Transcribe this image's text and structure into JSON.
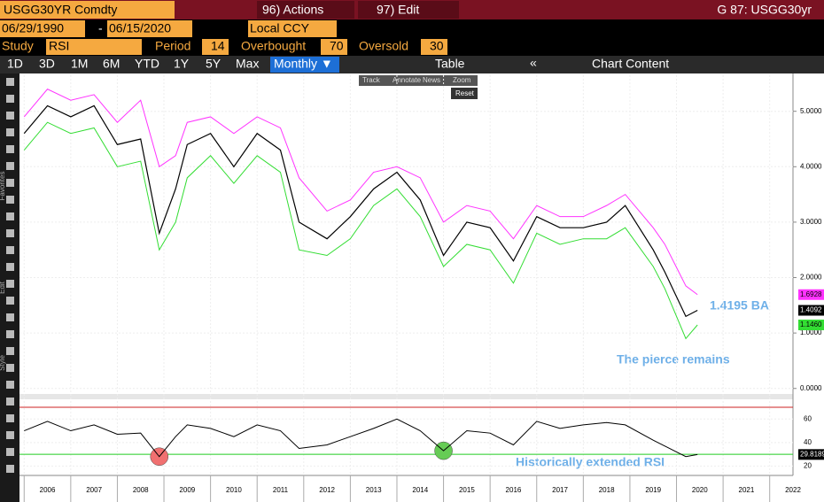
{
  "header": {
    "security": "USGG30YR Comdty",
    "actions": "96) Actions",
    "edit": "97) Edit",
    "ticker": "G 87: USGG30yr"
  },
  "toolbar": {
    "start_date": "06/29/1990",
    "dash": "-",
    "end_date": "06/15/2020",
    "currency": "Local CCY",
    "study_label": "Study",
    "study": "RSI",
    "period_label": "Period",
    "overbought_label": "Overbought",
    "oversold_label": "Oversold",
    "ranges": [
      "1D",
      "3D",
      "1M",
      "6M",
      "YTD",
      "1Y",
      "5Y",
      "Max"
    ],
    "frequency": "Monthly ▼",
    "table": "Table",
    "collapse": "«",
    "chart_content": "Chart Content",
    "tools": [
      "Track",
      "Annotate",
      "News",
      "Zoom"
    ],
    "reset": "Reset",
    "side_labels": [
      "Favorites",
      "Edit",
      "Style"
    ]
  },
  "chart_data": {
    "type": "line",
    "period": 14,
    "overbought": 70,
    "oversold": 30,
    "x": [
      2006.0,
      2006.5,
      2007.0,
      2007.5,
      2008.0,
      2008.5,
      2008.9,
      2009.25,
      2009.5,
      2010.0,
      2010.5,
      2011.0,
      2011.5,
      2011.9,
      2012.5,
      2013.0,
      2013.5,
      2014.0,
      2014.5,
      2015.0,
      2015.5,
      2016.0,
      2016.5,
      2017.0,
      2017.5,
      2018.0,
      2018.5,
      2018.9,
      2019.5,
      2019.75,
      2020.2,
      2020.45
    ],
    "xlim": [
      2005.9,
      2022.5
    ],
    "xticks": [
      2006,
      2007,
      2008,
      2009,
      2010,
      2011,
      2012,
      2013,
      2014,
      2015,
      2016,
      2017,
      2018,
      2019,
      2020,
      2021,
      2022
    ],
    "ylim": [
      -0.1,
      5.65
    ],
    "yticks": [
      {
        "value": 0,
        "label": "0.0000"
      },
      {
        "value": 1,
        "label": "1.0000"
      },
      {
        "value": 2,
        "label": "2.0000"
      },
      {
        "value": 3,
        "label": "3.0000"
      },
      {
        "value": 4,
        "label": "4.0000"
      },
      {
        "value": 5,
        "label": "5.0000"
      }
    ],
    "series": [
      {
        "color": "#ff33ff",
        "values": [
          4.9,
          5.4,
          5.2,
          5.3,
          4.8,
          5.2,
          4.0,
          4.2,
          4.8,
          4.9,
          4.6,
          4.9,
          4.7,
          3.8,
          3.2,
          3.4,
          3.9,
          4.0,
          3.8,
          3.0,
          3.3,
          3.2,
          2.7,
          3.3,
          3.1,
          3.1,
          3.3,
          3.5,
          2.9,
          2.6,
          1.85,
          1.6928
        ],
        "value_labels": [
          null,
          null,
          null,
          null,
          null,
          null,
          null,
          null,
          null,
          null,
          null,
          null,
          null,
          null,
          null,
          null,
          null,
          null,
          null,
          null,
          null,
          null,
          null,
          null,
          null,
          null,
          null,
          null,
          null,
          null,
          null,
          "1.6928"
        ]
      },
      {
        "color": "#000000",
        "values": [
          4.6,
          5.1,
          4.9,
          5.1,
          4.4,
          4.5,
          2.8,
          3.6,
          4.4,
          4.6,
          4.0,
          4.6,
          4.3,
          3.0,
          2.7,
          3.1,
          3.6,
          3.9,
          3.4,
          2.4,
          3.0,
          2.9,
          2.3,
          3.1,
          2.9,
          2.9,
          3.0,
          3.3,
          2.5,
          2.1,
          1.3,
          1.4092
        ],
        "value_labels": [
          null,
          null,
          null,
          null,
          null,
          null,
          null,
          null,
          null,
          null,
          null,
          null,
          null,
          null,
          null,
          null,
          null,
          null,
          null,
          null,
          null,
          null,
          null,
          null,
          null,
          null,
          null,
          null,
          null,
          null,
          null,
          "1.4092"
        ]
      },
      {
        "color": "#33dd33",
        "values": [
          4.3,
          4.8,
          4.6,
          4.7,
          4.0,
          4.1,
          2.5,
          3.0,
          3.8,
          4.2,
          3.7,
          4.2,
          3.9,
          2.5,
          2.4,
          2.7,
          3.3,
          3.6,
          3.1,
          2.2,
          2.6,
          2.5,
          1.9,
          2.8,
          2.6,
          2.7,
          2.7,
          2.9,
          2.2,
          1.8,
          0.9,
          1.146
        ],
        "value_labels": [
          null,
          null,
          null,
          null,
          null,
          null,
          null,
          null,
          null,
          null,
          null,
          null,
          null,
          null,
          null,
          null,
          null,
          null,
          null,
          null,
          null,
          null,
          null,
          null,
          null,
          null,
          null,
          null,
          null,
          null,
          null,
          "1.1460"
        ]
      }
    ],
    "rsi": {
      "color": "#000000",
      "values": [
        50,
        58,
        50,
        55,
        47,
        48,
        28,
        45,
        55,
        52,
        45,
        55,
        50,
        35,
        38,
        45,
        52,
        60,
        50,
        33,
        50,
        48,
        38,
        58,
        52,
        55,
        57,
        55,
        42,
        37,
        28,
        29.8189
      ],
      "value_labels": [
        null,
        null,
        null,
        null,
        null,
        null,
        null,
        null,
        null,
        null,
        null,
        null,
        null,
        null,
        null,
        null,
        null,
        null,
        null,
        null,
        null,
        null,
        null,
        null,
        null,
        null,
        null,
        null,
        null,
        null,
        null,
        "29.8189"
      ],
      "ylim": [
        12,
        76
      ],
      "yticks": [
        20,
        40,
        60
      ],
      "overbought_color": "#cc2222",
      "oversold_color": "#22cc22",
      "highlights": [
        {
          "point": 6,
          "color": "#f07070"
        },
        {
          "point": 19,
          "color": "#66cc55"
        }
      ]
    },
    "annotations": [
      "1.4195 BA",
      "The pierce remains",
      "Historically extended RSI"
    ]
  }
}
